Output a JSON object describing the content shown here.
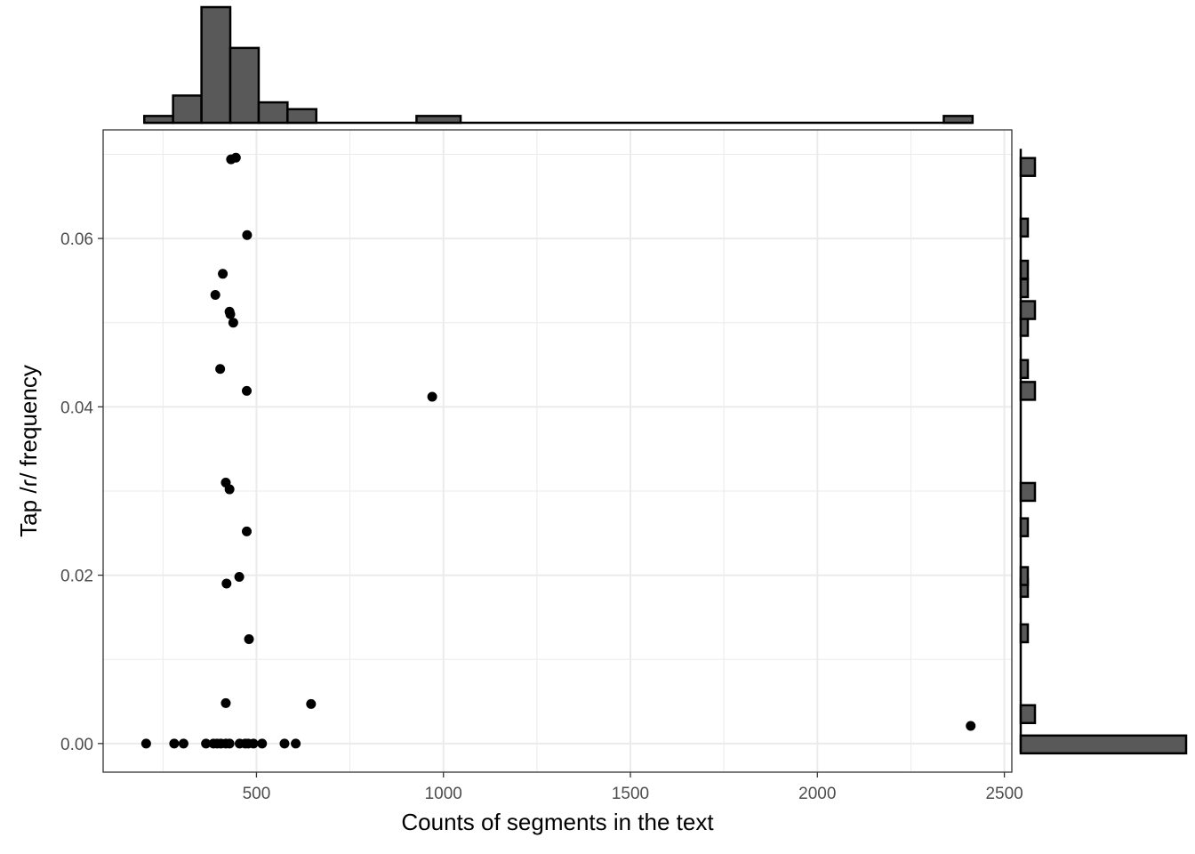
{
  "chart_data": {
    "type": "scatter",
    "title": "",
    "xlabel": "Counts of segments in the text",
    "ylabel": "Tap /ɾ/ frequency",
    "xlim": [
      90,
      2520
    ],
    "ylim": [
      -0.0034,
      0.0729
    ],
    "x_ticks": [
      500,
      1000,
      1500,
      2000,
      2500
    ],
    "y_ticks": [
      0.0,
      0.02,
      0.04,
      0.06
    ],
    "x_tick_labels": [
      "500",
      "1000",
      "1500",
      "2000",
      "2500"
    ],
    "y_tick_labels": [
      "0.00",
      "0.02",
      "0.04",
      "0.06"
    ],
    "grid": true,
    "point_color": "#000000",
    "bar_fill": "#595959",
    "bar_stroke": "#000000",
    "points": [
      {
        "x": 445,
        "y": 0.0696
      },
      {
        "x": 432,
        "y": 0.0694
      },
      {
        "x": 475,
        "y": 0.0604
      },
      {
        "x": 410,
        "y": 0.0558
      },
      {
        "x": 390,
        "y": 0.0533
      },
      {
        "x": 428,
        "y": 0.0513
      },
      {
        "x": 430,
        "y": 0.051
      },
      {
        "x": 438,
        "y": 0.05
      },
      {
        "x": 403,
        "y": 0.0445
      },
      {
        "x": 474,
        "y": 0.0419
      },
      {
        "x": 970,
        "y": 0.0412
      },
      {
        "x": 418,
        "y": 0.031
      },
      {
        "x": 428,
        "y": 0.0302
      },
      {
        "x": 474,
        "y": 0.0252
      },
      {
        "x": 454,
        "y": 0.0198
      },
      {
        "x": 420,
        "y": 0.019
      },
      {
        "x": 480,
        "y": 0.0124
      },
      {
        "x": 418,
        "y": 0.0048
      },
      {
        "x": 646,
        "y": 0.0047
      },
      {
        "x": 2410,
        "y": 0.0021
      },
      {
        "x": 205,
        "y": 0.0
      },
      {
        "x": 280,
        "y": 0.0
      },
      {
        "x": 305,
        "y": 0.0
      },
      {
        "x": 365,
        "y": 0.0
      },
      {
        "x": 385,
        "y": 0.0
      },
      {
        "x": 395,
        "y": 0.0
      },
      {
        "x": 405,
        "y": 0.0
      },
      {
        "x": 418,
        "y": 0.0
      },
      {
        "x": 428,
        "y": 0.0
      },
      {
        "x": 455,
        "y": 0.0
      },
      {
        "x": 470,
        "y": 0.0
      },
      {
        "x": 478,
        "y": 0.0
      },
      {
        "x": 492,
        "y": 0.0
      },
      {
        "x": 515,
        "y": 0.0
      },
      {
        "x": 575,
        "y": 0.0
      },
      {
        "x": 605,
        "y": 0.0
      }
    ],
    "x_histogram": {
      "baseline_x_range": [
        200,
        2415
      ],
      "bins": [
        {
          "x0": 200,
          "x1": 277,
          "count": 1
        },
        {
          "x0": 277,
          "x1": 353,
          "count": 4
        },
        {
          "x0": 353,
          "x1": 430,
          "count": 17
        },
        {
          "x0": 430,
          "x1": 506,
          "count": 11
        },
        {
          "x0": 506,
          "x1": 583,
          "count": 3
        },
        {
          "x0": 583,
          "x1": 660,
          "count": 2
        },
        {
          "x0": 928,
          "x1": 1046,
          "count": 1
        },
        {
          "x0": 2338,
          "x1": 2415,
          "count": 1
        }
      ]
    },
    "y_histogram": {
      "baseline_y_range": [
        0.0,
        0.0696
      ],
      "bins": [
        {
          "y": 0.0,
          "count": 16
        },
        {
          "y": 0.0036,
          "count": 2
        },
        {
          "y": 0.0132,
          "count": 1
        },
        {
          "y": 0.0186,
          "count": 1
        },
        {
          "y": 0.02,
          "count": 1
        },
        {
          "y": 0.0258,
          "count": 1
        },
        {
          "y": 0.03,
          "count": 2
        },
        {
          "y": 0.042,
          "count": 2
        },
        {
          "y": 0.0446,
          "count": 1
        },
        {
          "y": 0.0496,
          "count": 1
        },
        {
          "y": 0.0516,
          "count": 2
        },
        {
          "y": 0.0542,
          "count": 1
        },
        {
          "y": 0.0564,
          "count": 1
        },
        {
          "y": 0.0614,
          "count": 1
        },
        {
          "y": 0.0686,
          "count": 2
        }
      ]
    }
  }
}
